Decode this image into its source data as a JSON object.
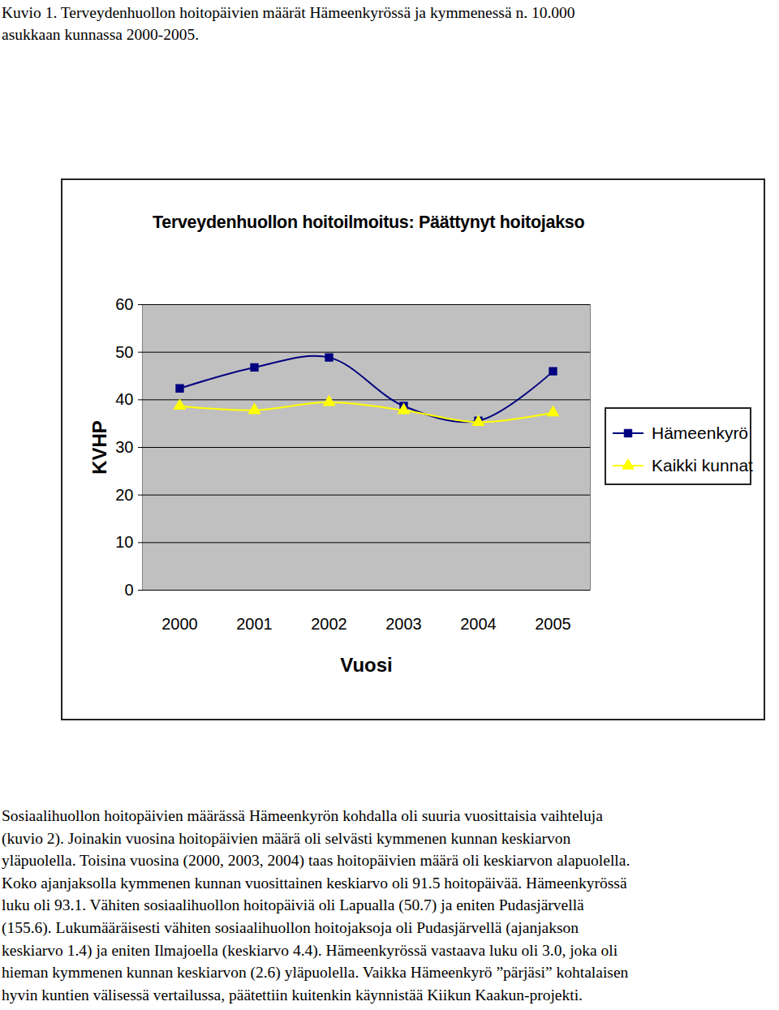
{
  "caption": [
    "Kuvio 1. Terveydenhuollon hoitopäivien määrät Hämeenkyrössä ja kymmenessä n. 10.000",
    "asukkaan kunnassa 2000-2005."
  ],
  "chart_data": {
    "type": "line",
    "title": "Terveydenhuollon hoitoilmoitus: Päättynyt hoitojakso",
    "x_label": "Vuosi",
    "y_label": "KVHP",
    "categories": [
      "2000",
      "2001",
      "2002",
      "2003",
      "2004",
      "2005"
    ],
    "series": [
      {
        "name": "Hämeenkyrö",
        "color": "#000080",
        "marker": "square",
        "values": [
          42.4,
          46.8,
          48.9,
          38.7,
          35.6,
          46.0
        ]
      },
      {
        "name": "Kaikki kunnat",
        "color": "#ffff00",
        "marker": "triangle",
        "values": [
          38.7,
          37.8,
          39.5,
          37.8,
          35.3,
          37.3
        ]
      }
    ],
    "ylim": [
      0,
      60
    ],
    "yticks": [
      0,
      10,
      20,
      30,
      40,
      50,
      60
    ],
    "grid": true,
    "legend": "right"
  },
  "paragraph": [
    "Sosiaalihuollon hoitopäivien määrässä Hämeenkyrön kohdalla oli suuria vuosittaisia vaihteluja",
    "(kuvio 2). Joinakin vuosina hoitopäivien määrä oli selvästi kymmenen kunnan keskiarvon",
    "yläpuolella. Toisina vuosina (2000, 2003, 2004) taas hoitopäivien määrä oli keskiarvon alapuolella.",
    "Koko ajanjaksolla kymmenen kunnan vuosittainen keskiarvo oli 91.5 hoitopäivää. Hämeenkyrössä",
    "luku oli 93.1. Vähiten sosiaalihuollon hoitopäiviä oli Lapualla (50.7) ja eniten Pudasjärvellä",
    "(155.6). Lukumääräisesti vähiten sosiaalihuollon hoitojaksoja oli Pudasjärvellä (ajanjakson",
    "keskiarvo 1.4) ja eniten Ilmajoella (keskiarvo 4.4). Hämeenkyrössä vastaava luku oli 3.0, joka oli",
    "hieman kymmenen kunnan keskiarvon (2.6) yläpuolella. Vaikka Hämeenkyrö ”pärjäsi” kohtalaisen",
    "hyvin kuntien välisessä vertailussa, päätettiin kuitenkin käynnistää Kiikun Kaakun-projekti."
  ]
}
